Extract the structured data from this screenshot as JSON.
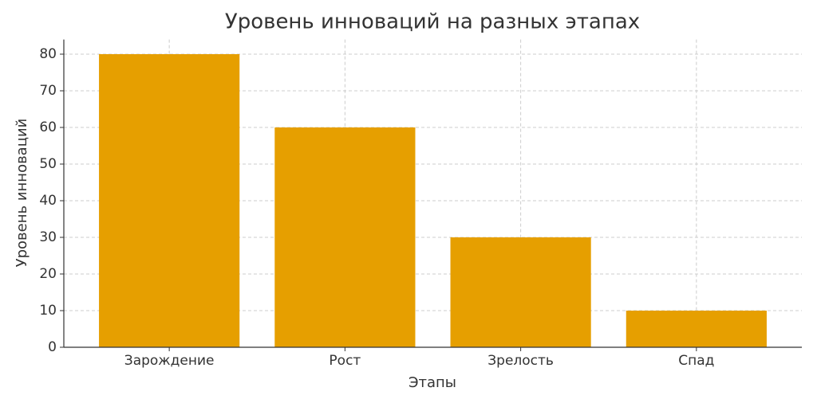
{
  "chart_data": {
    "type": "bar",
    "title": "Уровень инноваций на разных этапах",
    "x_label": "Этапы",
    "y_label": "Уровень инноваций",
    "categories": [
      "Зарождение",
      "Рост",
      "Зрелость",
      "Спад"
    ],
    "values": [
      80,
      60,
      30,
      10
    ],
    "color": "#e69f00",
    "ylim": [
      0,
      84
    ],
    "yticks": [
      0,
      10,
      20,
      30,
      40,
      50,
      60,
      70,
      80
    ],
    "grid": true
  }
}
